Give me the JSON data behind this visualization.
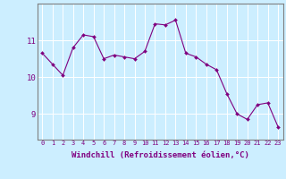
{
  "x": [
    0,
    1,
    2,
    3,
    4,
    5,
    6,
    7,
    8,
    9,
    10,
    11,
    12,
    13,
    14,
    15,
    16,
    17,
    18,
    19,
    20,
    21,
    22,
    23
  ],
  "y": [
    10.65,
    10.35,
    10.05,
    10.8,
    11.15,
    11.1,
    10.5,
    10.6,
    10.55,
    10.5,
    10.7,
    11.45,
    11.42,
    11.55,
    10.65,
    10.55,
    10.35,
    10.2,
    9.55,
    9.0,
    8.85,
    9.25,
    9.3,
    8.65
  ],
  "line_color": "#800080",
  "marker": "D",
  "marker_size": 2,
  "bg_color": "#cceeff",
  "grid_color": "#ffffff",
  "xlabel": "Windchill (Refroidissement éolien,°C)",
  "xlabel_color": "#800080",
  "yticks": [
    9,
    10,
    11
  ],
  "ylim": [
    8.3,
    12.0
  ],
  "xlim": [
    -0.5,
    23.5
  ],
  "tick_color": "#800080",
  "axis_color": "#808080",
  "xtick_fontsize": 5.0,
  "ytick_fontsize": 6.5,
  "xlabel_fontsize": 6.5
}
